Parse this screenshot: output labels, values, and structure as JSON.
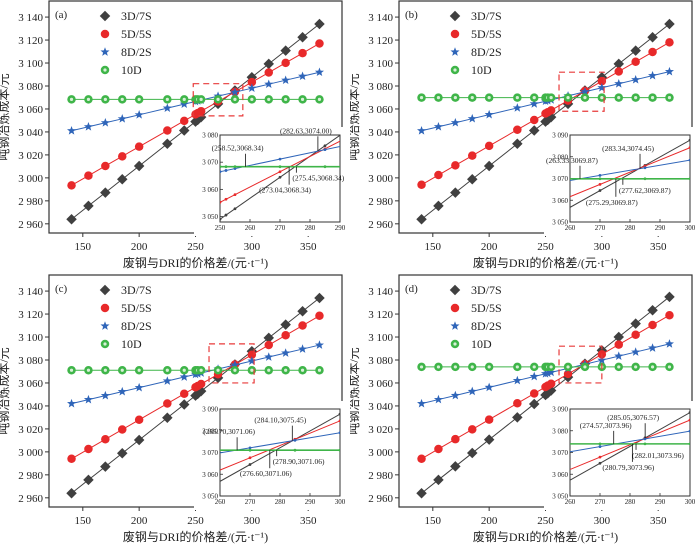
{
  "chart_data": [
    {
      "type": "line",
      "panel_label": "(a)",
      "xlabel": "废钢与DRI的价格差/(元·t⁻¹)",
      "ylabel": "吨钢冶炼成本/元",
      "xlim": [
        120,
        380
      ],
      "ylim": [
        2952,
        3154
      ],
      "xticks": [
        150,
        200,
        250,
        300,
        350
      ],
      "yticks": [
        2960,
        2980,
        3000,
        3020,
        3040,
        3060,
        3080,
        3100,
        3120,
        3140
      ],
      "ytick_labels": [
        "2 960",
        "2 980",
        "3 000",
        "3 020",
        "3 040",
        "3 060",
        "3 080",
        "3 100",
        "3 120",
        "3 140"
      ],
      "legend_position": "top-left",
      "x": [
        140,
        155,
        170,
        185,
        200,
        225,
        240,
        250,
        252,
        255,
        270,
        285,
        300,
        315,
        330,
        345,
        360
      ],
      "series": [
        {
          "name": "3D/7S",
          "color": "#404040",
          "marker": "diamond",
          "start": 2964,
          "end": 3134
        },
        {
          "name": "5D/5S",
          "color": "#e8292a",
          "marker": "circle",
          "start": 2993.5,
          "end": 3117
        },
        {
          "name": "8D/2S",
          "color": "#2f65b9",
          "marker": "star",
          "start": 3041,
          "end": 3092
        },
        {
          "name": "10D",
          "color": "#3fb549",
          "marker": "hollow-circle",
          "start": 3068.34,
          "end": 3068.34
        }
      ],
      "highlight_box": {
        "x": [
          248,
          292
        ],
        "y": [
          3054,
          3082
        ]
      },
      "inset": {
        "xlim": [
          250,
          290
        ],
        "ylim": [
          3048,
          3080
        ],
        "xticks": [
          250,
          260,
          270,
          280,
          290
        ],
        "yticks": [
          3050,
          3060,
          3070,
          3080
        ],
        "ytick_labels": [
          "3 050",
          "3 060",
          "3 070",
          "3 080"
        ],
        "annotations": [
          {
            "text": "(282.63,3074.00)",
            "x": 282.63,
            "y": 3074.0
          },
          {
            "text": "(258.52,3068.34)",
            "x": 258.52,
            "y": 3068.34
          },
          {
            "text": "(275.45,3068.34)",
            "x": 275.45,
            "y": 3068.34
          },
          {
            "text": "(273.04,3068.34)",
            "x": 273.04,
            "y": 3068.34
          }
        ]
      }
    },
    {
      "type": "line",
      "panel_label": "(b)",
      "xlabel": "废钢与DRI的价格差/(元·t⁻¹)",
      "ylabel": "吨钢冶炼成本/元",
      "xlim": [
        120,
        380
      ],
      "ylim": [
        2952,
        3154
      ],
      "xticks": [
        150,
        200,
        250,
        300,
        350
      ],
      "yticks": [
        2960,
        2980,
        3000,
        3020,
        3040,
        3060,
        3080,
        3100,
        3120,
        3140
      ],
      "ytick_labels": [
        "2 960",
        "2 980",
        "3 000",
        "3 020",
        "3 040",
        "3 060",
        "3 080",
        "3 100",
        "3 120",
        "3 140"
      ],
      "legend_position": "top-left",
      "x": [
        140,
        155,
        170,
        185,
        200,
        225,
        240,
        250,
        252,
        255,
        270,
        285,
        300,
        315,
        330,
        345,
        360
      ],
      "series": [
        {
          "name": "3D/7S",
          "color": "#404040",
          "marker": "diamond",
          "start": 2964,
          "end": 3134
        },
        {
          "name": "5D/5S",
          "color": "#e8292a",
          "marker": "circle",
          "start": 2994,
          "end": 3118
        },
        {
          "name": "8D/2S",
          "color": "#2f65b9",
          "marker": "star",
          "start": 3041,
          "end": 3092.5
        },
        {
          "name": "10D",
          "color": "#3fb549",
          "marker": "hollow-circle",
          "start": 3069.87,
          "end": 3069.87
        }
      ],
      "highlight_box": {
        "x": [
          262,
          302
        ],
        "y": [
          3058,
          3092
        ]
      },
      "inset": {
        "xlim": [
          260,
          300
        ],
        "ylim": [
          3050,
          3090
        ],
        "xticks": [
          260,
          270,
          280,
          290,
          300
        ],
        "yticks": [
          3050,
          3060,
          3070,
          3080,
          3090
        ],
        "ytick_labels": [
          "3 050",
          "3 060",
          "3 070",
          "3 080",
          "3 090"
        ],
        "annotations": [
          {
            "text": "(283.34,3074.45)",
            "x": 283.34,
            "y": 3074.45
          },
          {
            "text": "(263.33,3069.87)",
            "x": 263.33,
            "y": 3069.87
          },
          {
            "text": "(277.62,3069.87)",
            "x": 277.62,
            "y": 3069.87
          },
          {
            "text": "(275.29,3069.87)",
            "x": 275.29,
            "y": 3069.87
          }
        ]
      }
    },
    {
      "type": "line",
      "panel_label": "(c)",
      "xlabel": "废钢与DRI的价格差/(元·t⁻¹)",
      "ylabel": "吨钢冶炼成本/元",
      "xlim": [
        120,
        380
      ],
      "ylim": [
        2952,
        3154
      ],
      "xticks": [
        150,
        200,
        250,
        300,
        350
      ],
      "yticks": [
        2960,
        2980,
        3000,
        3020,
        3040,
        3060,
        3080,
        3100,
        3120,
        3140
      ],
      "ytick_labels": [
        "2 960",
        "2 980",
        "3 000",
        "3 020",
        "3 040",
        "3 060",
        "3 080",
        "3 100",
        "3 120",
        "3 140"
      ],
      "legend_position": "top-left",
      "x": [
        140,
        155,
        170,
        185,
        200,
        225,
        240,
        250,
        252,
        255,
        270,
        285,
        300,
        315,
        330,
        345,
        360
      ],
      "series": [
        {
          "name": "3D/7S",
          "color": "#404040",
          "marker": "diamond",
          "start": 2964,
          "end": 3134
        },
        {
          "name": "5D/5S",
          "color": "#e8292a",
          "marker": "circle",
          "start": 2994,
          "end": 3118.5
        },
        {
          "name": "8D/2S",
          "color": "#2f65b9",
          "marker": "star",
          "start": 3042,
          "end": 3093
        },
        {
          "name": "10D",
          "color": "#3fb549",
          "marker": "hollow-circle",
          "start": 3071.06,
          "end": 3071.06
        }
      ],
      "highlight_box": {
        "x": [
          262,
          302
        ],
        "y": [
          3060,
          3094
        ]
      },
      "inset": {
        "xlim": [
          260,
          300
        ],
        "ylim": [
          3050,
          3090
        ],
        "xticks": [
          260,
          270,
          280,
          290,
          300
        ],
        "yticks": [
          3050,
          3060,
          3070,
          3080,
          3090
        ],
        "ytick_labels": [
          "3 050",
          "3 060",
          "3 070",
          "3 080",
          "3 090"
        ],
        "annotations": [
          {
            "text": "(284.10,3075.45)",
            "x": 284.1,
            "y": 3075.45
          },
          {
            "text": "(265.70,3071.06)",
            "x": 265.7,
            "y": 3071.06
          },
          {
            "text": "(278.90,3071.06)",
            "x": 278.9,
            "y": 3071.06
          },
          {
            "text": "(276.60,3071.06)",
            "x": 276.6,
            "y": 3071.06
          }
        ]
      }
    },
    {
      "type": "line",
      "panel_label": "(d)",
      "xlabel": "废钢与DRI的价格差/(元·t⁻¹)",
      "ylabel": "吨钢冶炼成本/元",
      "xlim": [
        120,
        380
      ],
      "ylim": [
        2952,
        3154
      ],
      "xticks": [
        150,
        200,
        250,
        300,
        350
      ],
      "yticks": [
        2960,
        2980,
        3000,
        3020,
        3040,
        3060,
        3080,
        3100,
        3120,
        3140
      ],
      "ytick_labels": [
        "2 960",
        "2 980",
        "3 000",
        "3 020",
        "3 040",
        "3 060",
        "3 080",
        "3 100",
        "3 120",
        "3 140"
      ],
      "legend_position": "top-left",
      "x": [
        140,
        155,
        170,
        185,
        200,
        225,
        240,
        250,
        252,
        255,
        270,
        285,
        300,
        315,
        330,
        345,
        360
      ],
      "series": [
        {
          "name": "3D/7S",
          "color": "#404040",
          "marker": "diamond",
          "start": 2964,
          "end": 3135
        },
        {
          "name": "5D/5S",
          "color": "#e8292a",
          "marker": "circle",
          "start": 2994,
          "end": 3119
        },
        {
          "name": "8D/2S",
          "color": "#2f65b9",
          "marker": "star",
          "start": 3042,
          "end": 3094
        },
        {
          "name": "10D",
          "color": "#3fb549",
          "marker": "hollow-circle",
          "start": 3073.96,
          "end": 3073.96
        }
      ],
      "highlight_box": {
        "x": [
          262,
          300
        ],
        "y": [
          3060,
          3092
        ]
      },
      "inset": {
        "xlim": [
          260,
          300
        ],
        "ylim": [
          3050,
          3090
        ],
        "xticks": [
          260,
          270,
          280,
          290,
          300
        ],
        "yticks": [
          3050,
          3060,
          3070,
          3080,
          3090
        ],
        "ytick_labels": [
          "3 050",
          "3 060",
          "3 070",
          "3 080",
          "3 090"
        ],
        "annotations": [
          {
            "text": "(285.05,3076.57)",
            "x": 285.05,
            "y": 3076.57
          },
          {
            "text": "(274.57,3073.96)",
            "x": 274.57,
            "y": 3073.96
          },
          {
            "text": "(282.01,3073.96)",
            "x": 282.01,
            "y": 3073.96
          },
          {
            "text": "(280.79,3073.96)",
            "x": 280.79,
            "y": 3073.96
          }
        ]
      }
    }
  ]
}
